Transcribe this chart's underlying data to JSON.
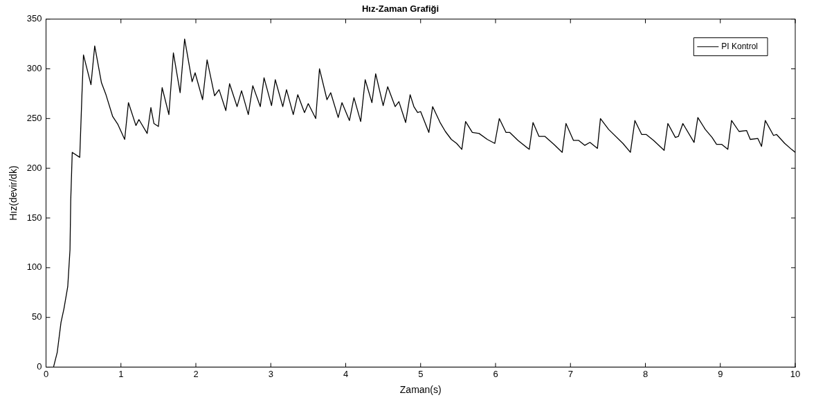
{
  "chart_data": {
    "type": "line",
    "title": "Hız-Zaman Grafiği",
    "xlabel": "Zaman(s)",
    "ylabel": "Hız(devir/dk)",
    "xlim": [
      0,
      10
    ],
    "xticks": [
      0,
      1,
      2,
      3,
      4,
      5,
      6,
      7,
      8,
      9,
      10
    ],
    "ylim": [
      0,
      350
    ],
    "yticks": [
      0,
      50,
      100,
      150,
      200,
      250,
      300,
      350
    ],
    "grid": false,
    "legend": "top right",
    "marker": "none",
    "line_style": "solid",
    "series": [
      {
        "name": "PI Kontrol",
        "color": "#000000",
        "x": [
          0.1,
          0.15,
          0.2,
          0.24,
          0.29,
          0.32,
          0.33,
          0.35,
          0.45,
          0.48,
          0.5,
          0.6,
          0.65,
          0.74,
          0.8,
          0.89,
          0.96,
          1.05,
          1.1,
          1.2,
          1.24,
          1.35,
          1.4,
          1.44,
          1.5,
          1.55,
          1.64,
          1.7,
          1.79,
          1.85,
          1.95,
          1.99,
          2.09,
          2.15,
          2.25,
          2.31,
          2.4,
          2.45,
          2.55,
          2.61,
          2.7,
          2.76,
          2.86,
          2.91,
          3.01,
          3.06,
          3.16,
          3.21,
          3.3,
          3.36,
          3.45,
          3.5,
          3.6,
          3.65,
          3.75,
          3.8,
          3.9,
          3.95,
          4.05,
          4.11,
          4.2,
          4.26,
          4.35,
          4.4,
          4.5,
          4.56,
          4.66,
          4.71,
          4.8,
          4.86,
          4.91,
          4.96,
          5.0,
          5.11,
          5.16,
          5.26,
          5.33,
          5.41,
          5.48,
          5.55,
          5.6,
          5.69,
          5.78,
          5.89,
          5.99,
          6.05,
          6.14,
          6.19,
          6.3,
          6.45,
          6.5,
          6.58,
          6.66,
          6.78,
          6.89,
          6.94,
          7.04,
          7.11,
          7.19,
          7.26,
          7.36,
          7.4,
          7.51,
          7.7,
          7.8,
          7.86,
          7.95,
          8.01,
          8.11,
          8.25,
          8.3,
          8.4,
          8.44,
          8.5,
          8.65,
          8.7,
          8.8,
          8.89,
          8.95,
          9.02,
          9.1,
          9.15,
          9.25,
          9.35,
          9.4,
          9.5,
          9.55,
          9.6,
          9.71,
          9.75,
          9.86,
          9.95,
          10
        ],
        "values": [
          0,
          15,
          45,
          59,
          81,
          118,
          168,
          216,
          211,
          275,
          314,
          284,
          323,
          286,
          274,
          252,
          244,
          229,
          266,
          243,
          249,
          235,
          261,
          245,
          242,
          281,
          254,
          316,
          276,
          330,
          287,
          296,
          269,
          309,
          273,
          279,
          258,
          285,
          262,
          278,
          254,
          283,
          262,
          291,
          263,
          289,
          262,
          279,
          254,
          274,
          256,
          265,
          250,
          300,
          269,
          276,
          251,
          266,
          248,
          271,
          247,
          289,
          266,
          295,
          263,
          282,
          262,
          267,
          246,
          274,
          262,
          256,
          257,
          236,
          262,
          246,
          237,
          229,
          225,
          219,
          247,
          236,
          235,
          229,
          225,
          250,
          236,
          236,
          228,
          219,
          246,
          232,
          232,
          224,
          216,
          245,
          228,
          228,
          223,
          226,
          220,
          250,
          239,
          225,
          216,
          248,
          234,
          234,
          228,
          218,
          245,
          231,
          232,
          245,
          226,
          251,
          239,
          231,
          224,
          224,
          219,
          248,
          237,
          238,
          229,
          230,
          222,
          248,
          233,
          234,
          225,
          219,
          216
        ]
      }
    ]
  }
}
